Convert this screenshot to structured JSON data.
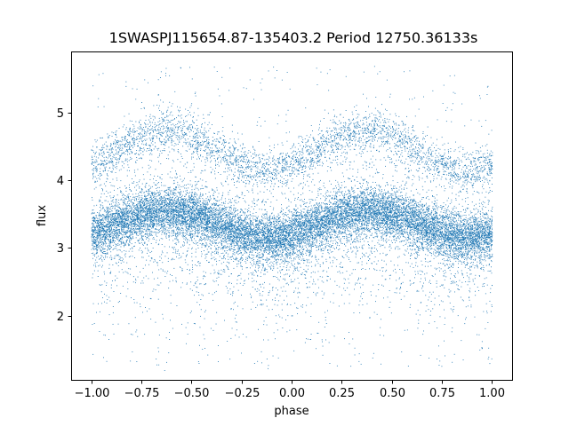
{
  "chart_data": {
    "type": "scatter",
    "title": "1SWASPJ115654.87-135403.2 Period 12750.36133s",
    "xlabel": "phase",
    "ylabel": "flux",
    "xlim": [
      -1.1,
      1.1
    ],
    "ylim": [
      1.05,
      5.9
    ],
    "xticks": [
      -1.0,
      -0.75,
      -0.5,
      -0.25,
      0.0,
      0.25,
      0.5,
      0.75,
      1.0
    ],
    "xtick_labels": [
      "−1.00",
      "−0.75",
      "−0.50",
      "−0.25",
      "0.00",
      "0.25",
      "0.50",
      "0.75",
      "1.00"
    ],
    "yticks": [
      2,
      3,
      4,
      5
    ],
    "ytick_labels": [
      "2",
      "3",
      "4",
      "5"
    ],
    "grid": false,
    "marker_color": "#1f77b4",
    "series": [
      {
        "description_of_bands": "phase-folded light curve, period 1 in phase units, plotted from -1 to 1",
        "main_band": {
          "mean_flux": 3.35,
          "amplitude": 0.2,
          "max_phase": -0.62,
          "scatter": 0.18
        },
        "upper_band": {
          "mean_flux": 4.45,
          "amplitude": 0.3,
          "max_phase": -0.62,
          "scatter": 0.16
        },
        "outliers": {
          "flux_range": [
            1.25,
            5.7
          ]
        }
      }
    ]
  }
}
